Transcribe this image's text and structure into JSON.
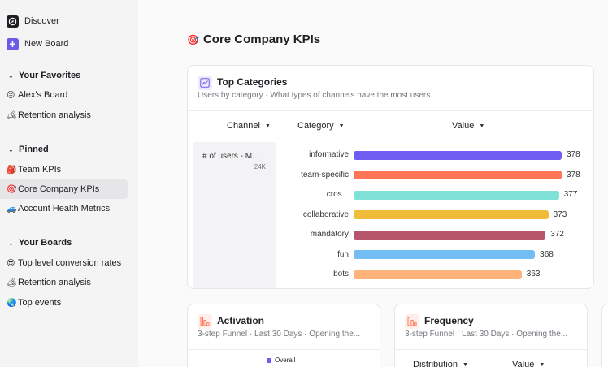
{
  "sidebar": {
    "discover": "Discover",
    "new_board": "New Board",
    "favorites": {
      "header": "Your Favorites",
      "items": [
        {
          "emoji": "😐",
          "label": "Alex's Board"
        },
        {
          "emoji": "🏕",
          "label": "Retention analysis"
        }
      ]
    },
    "pinned": {
      "header": "Pinned",
      "items": [
        {
          "emoji": "🎒",
          "label": "Team KPIs"
        },
        {
          "emoji": "🎯",
          "label": "Core Company KPIs"
        },
        {
          "emoji": "🚙",
          "label": "Account Health Metrics"
        }
      ]
    },
    "boards": {
      "header": "Your Boards",
      "items": [
        {
          "emoji": "😎",
          "label": "Top level conversion rates"
        },
        {
          "emoji": "🏕",
          "label": "Retention analysis"
        },
        {
          "emoji": "🌏",
          "label": "Top events"
        }
      ]
    }
  },
  "page": {
    "emoji": "🎯",
    "title": "Core Company KPIs"
  },
  "top_categories": {
    "title": "Top Categories",
    "subtitle": "Users by category · What types of channels have the most users",
    "headers": {
      "channel": "Channel",
      "category": "Category",
      "value": "Value"
    },
    "group_label": "# of users - M...",
    "group_total": "24K",
    "chart_data": {
      "type": "bar",
      "orientation": "horizontal",
      "categories": [
        "informative",
        "team-specific",
        "cros...",
        "collaborative",
        "mandatory",
        "fun",
        "bots"
      ],
      "values": [
        378,
        378,
        377,
        373,
        372,
        368,
        363
      ],
      "value_labels": [
        "378",
        "378",
        "377",
        "373",
        "372",
        "368",
        "363"
      ],
      "colors": [
        "#6f5cf1",
        "#ff7557",
        "#80e1d9",
        "#f2bc3b",
        "#b5566a",
        "#72bef4",
        "#ffb27a"
      ],
      "xlim": [
        0,
        378
      ]
    }
  },
  "activation": {
    "title": "Activation",
    "subtitle": "3-step Funnel · Last 30 Days · Opening the...",
    "legend": "Overall",
    "legend_color": "#6f5cf1"
  },
  "frequency": {
    "title": "Frequency",
    "subtitle": "3-step Funnel · Last 30 Days · Opening the...",
    "headers": {
      "distribution": "Distribution",
      "value": "Value"
    }
  }
}
